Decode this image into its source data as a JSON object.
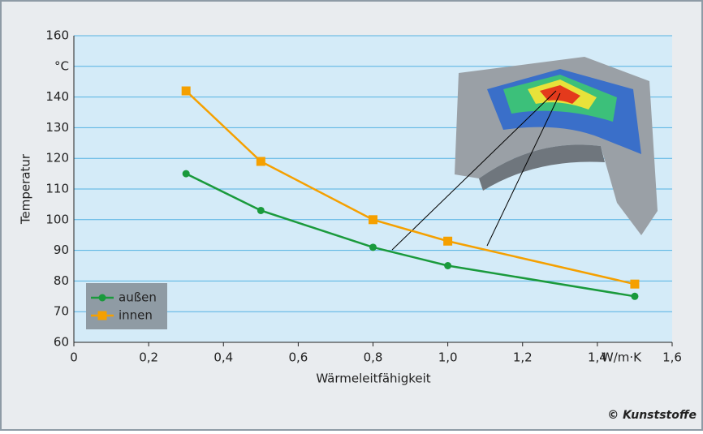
{
  "chart_data": {
    "type": "line",
    "x_label": "Wärmeleitfähigkeit",
    "y_label": "Temperatur",
    "x_unit": "W/m·K",
    "credit": "© Kunststoffe",
    "x": [
      0.3,
      0.5,
      0.8,
      1.0,
      1.5
    ],
    "series": [
      {
        "name": "außen",
        "color": "#1a9a3c",
        "marker": "circle",
        "values": [
          115,
          103,
          91,
          85,
          75
        ]
      },
      {
        "name": "innen",
        "color": "#f5a000",
        "marker": "square",
        "values": [
          142,
          119,
          100,
          93,
          79
        ]
      }
    ],
    "xlim": [
      0,
      1.6
    ],
    "xticks": [
      0,
      {
        "value": 0.2,
        "label": "0,2"
      },
      {
        "value": 0.4,
        "label": "0,4"
      },
      {
        "value": 0.6,
        "label": "0,6"
      },
      {
        "value": 0.8,
        "label": "0,8"
      },
      {
        "value": 1.0,
        "label": "1,0"
      },
      {
        "value": 1.2,
        "label": "1,2"
      },
      {
        "value": 1.4,
        "label": "1,4"
      },
      {
        "value": 1.6,
        "label": "1,6"
      }
    ],
    "ylim": [
      60,
      160
    ],
    "yticks": [
      60,
      70,
      80,
      90,
      100,
      110,
      120,
      130,
      140,
      {
        "value": 150,
        "label": "°C"
      },
      160
    ],
    "grid": true,
    "legend_position": "lower-left"
  }
}
